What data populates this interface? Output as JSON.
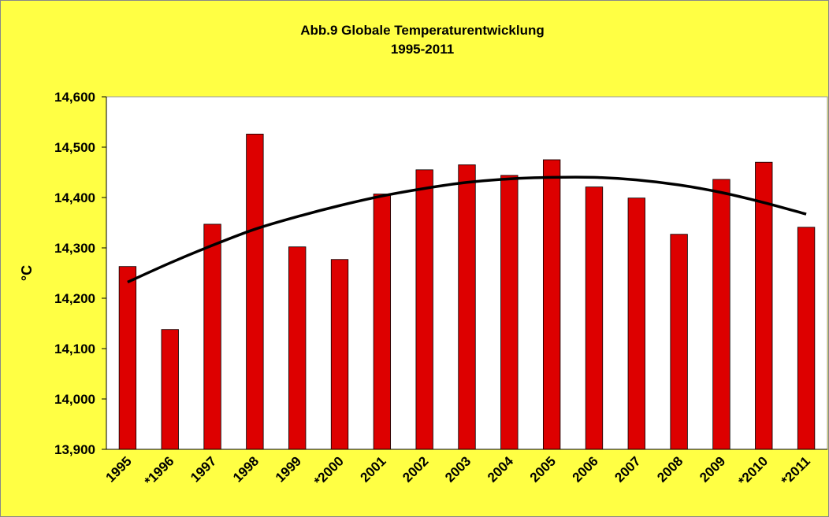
{
  "chart_data": {
    "type": "bar",
    "title": "Abb.9 Globale Temperaturentwicklung",
    "subtitle": "1995-2011",
    "y_label": "°C",
    "categories": [
      "1995",
      "*1996",
      "1997",
      "1998",
      "1999",
      "*2000",
      "2001",
      "2002",
      "2003",
      "2004",
      "2005",
      "2006",
      "2007",
      "2008",
      "2009",
      "*2010",
      "*2011"
    ],
    "values": [
      14.263,
      14.138,
      14.347,
      14.526,
      14.302,
      14.277,
      14.407,
      14.455,
      14.465,
      14.444,
      14.475,
      14.421,
      14.399,
      14.327,
      14.436,
      14.47,
      14.341
    ],
    "color": "#dd0000",
    "trendline": {
      "color": "#000000",
      "values": [
        14.232,
        14.27,
        14.305,
        14.337,
        14.362,
        14.384,
        14.403,
        14.418,
        14.43,
        14.437,
        14.44,
        14.44,
        14.435,
        14.425,
        14.41,
        14.39,
        14.367
      ]
    },
    "ylim": [
      13.9,
      14.6
    ],
    "yticks": [
      {
        "value": 13.9,
        "label": "13,900"
      },
      {
        "value": 14.0,
        "label": "14,000"
      },
      {
        "value": 14.1,
        "label": "14,100"
      },
      {
        "value": 14.2,
        "label": "14,200"
      },
      {
        "value": 14.3,
        "label": "14,300"
      },
      {
        "value": 14.4,
        "label": "14,400"
      },
      {
        "value": 14.5,
        "label": "14,500"
      },
      {
        "value": 14.6,
        "label": "14,600"
      }
    ],
    "grid": false
  }
}
